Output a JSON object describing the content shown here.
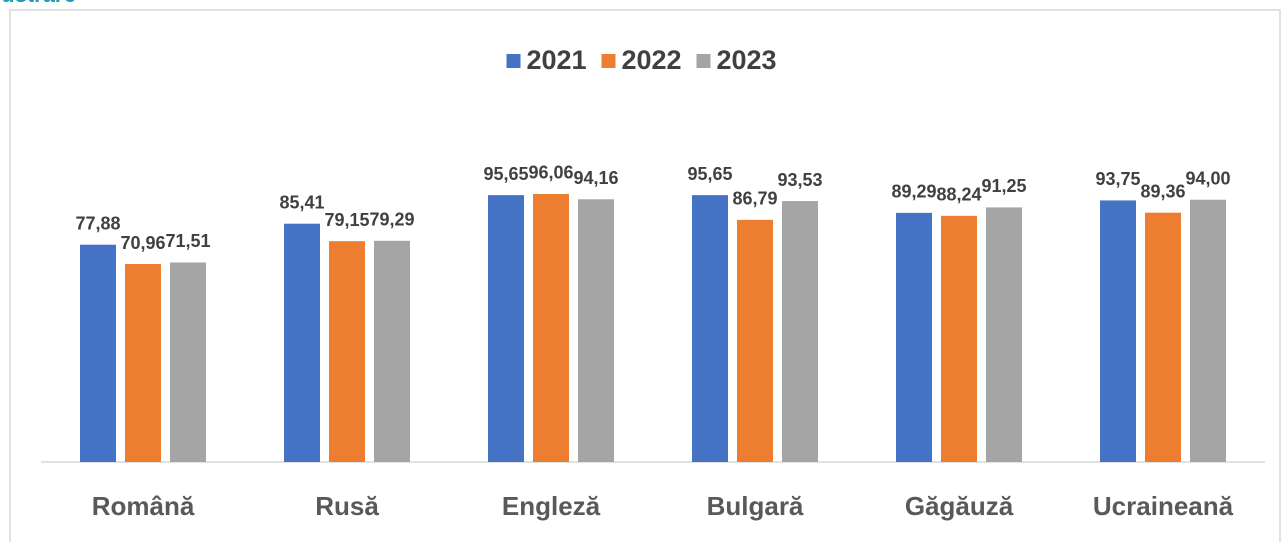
{
  "caption": "ustrare",
  "chart_data": {
    "type": "bar",
    "categories": [
      "Română",
      "Rusă",
      "Engleză",
      "Bulgară",
      "Găgăuză",
      "Ucraineană"
    ],
    "ylim": [
      0,
      100
    ],
    "legend": "top",
    "series": [
      {
        "name": "2021",
        "color": "#4472c4",
        "values": [
          77.88,
          85.41,
          95.65,
          95.65,
          89.29,
          93.75
        ],
        "value_labels": [
          "77,88",
          "85,41",
          "95,65",
          "95,65",
          "89,29",
          "93,75"
        ]
      },
      {
        "name": "2022",
        "color": "#ed7d31",
        "values": [
          70.96,
          79.15,
          96.06,
          86.79,
          88.24,
          89.36
        ],
        "value_labels": [
          "70,96",
          "79,15",
          "96,06",
          "86,79",
          "88,24",
          "89,36"
        ]
      },
      {
        "name": "2023",
        "color": "#a5a5a5",
        "values": [
          71.51,
          79.29,
          94.16,
          93.53,
          91.25,
          94.0
        ],
        "value_labels": [
          "71,51",
          "79,29",
          "94,16",
          "93,53",
          "91,25",
          "94,00"
        ]
      }
    ]
  }
}
